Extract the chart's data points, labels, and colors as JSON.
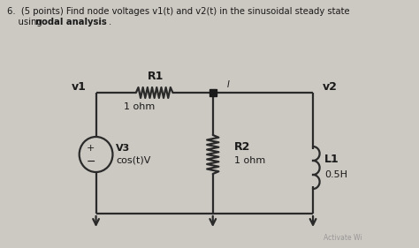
{
  "bg_color": "#ccc8c2",
  "line_color": "#2a2a2a",
  "text_color": "#1a1a1a",
  "v1_label": "v1",
  "v2_label": "v2",
  "R1_label": "R1",
  "R1_val": "1 ohm",
  "R2_label": "R2",
  "R2_val": "1 ohm",
  "L1_label": "L1",
  "L1_val": "0.5H",
  "vs_label": "V3",
  "vs_val": "cos(t)V",
  "current_label": "I",
  "activate_text": "Activate Wi",
  "header1": "6.  (5 points) Find node voltages v1(t) and v2(t) in the sinusoidal steady state",
  "header2a": "    using ",
  "header2b": "nodal analysis",
  "header2c": "."
}
